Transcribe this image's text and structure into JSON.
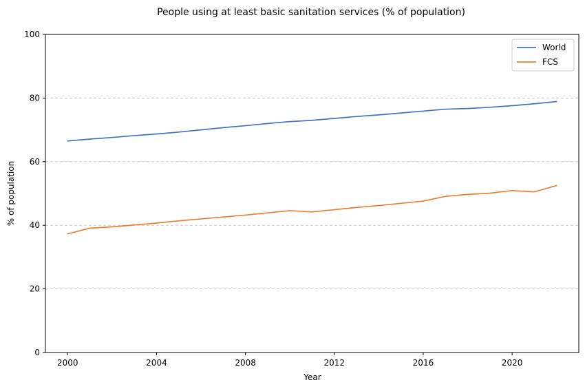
{
  "chart_data": {
    "type": "line",
    "title": "People using at least basic sanitation services (% of population)",
    "xlabel": "Year",
    "ylabel": "% of population",
    "xlim": [
      1999,
      2023
    ],
    "ylim": [
      0,
      100
    ],
    "xticks": [
      2000,
      2004,
      2008,
      2012,
      2016,
      2020
    ],
    "yticks": [
      0,
      20,
      40,
      60,
      80,
      100
    ],
    "grid": "y-dashed",
    "legend": "top-right",
    "x": [
      2000,
      2001,
      2002,
      2003,
      2004,
      2005,
      2006,
      2007,
      2008,
      2009,
      2010,
      2011,
      2012,
      2013,
      2014,
      2015,
      2016,
      2017,
      2018,
      2019,
      2020,
      2021,
      2022
    ],
    "series": [
      {
        "name": "World",
        "color": "#4472c4",
        "values": [
          66.5,
          67.1,
          67.6,
          68.2,
          68.7,
          69.3,
          70.0,
          70.7,
          71.3,
          72.0,
          72.6,
          73.0,
          73.6,
          74.2,
          74.7,
          75.3,
          75.9,
          76.5,
          76.7,
          77.1,
          77.6,
          78.2,
          78.9
        ]
      },
      {
        "name": "FCS",
        "color": "#ed7d31",
        "values": [
          37.3,
          39.1,
          39.5,
          40.1,
          40.7,
          41.4,
          42.0,
          42.6,
          43.2,
          43.9,
          44.6,
          44.2,
          44.9,
          45.6,
          46.2,
          46.9,
          47.6,
          49.1,
          49.7,
          50.1,
          50.9,
          50.5,
          52.5
        ]
      }
    ]
  }
}
